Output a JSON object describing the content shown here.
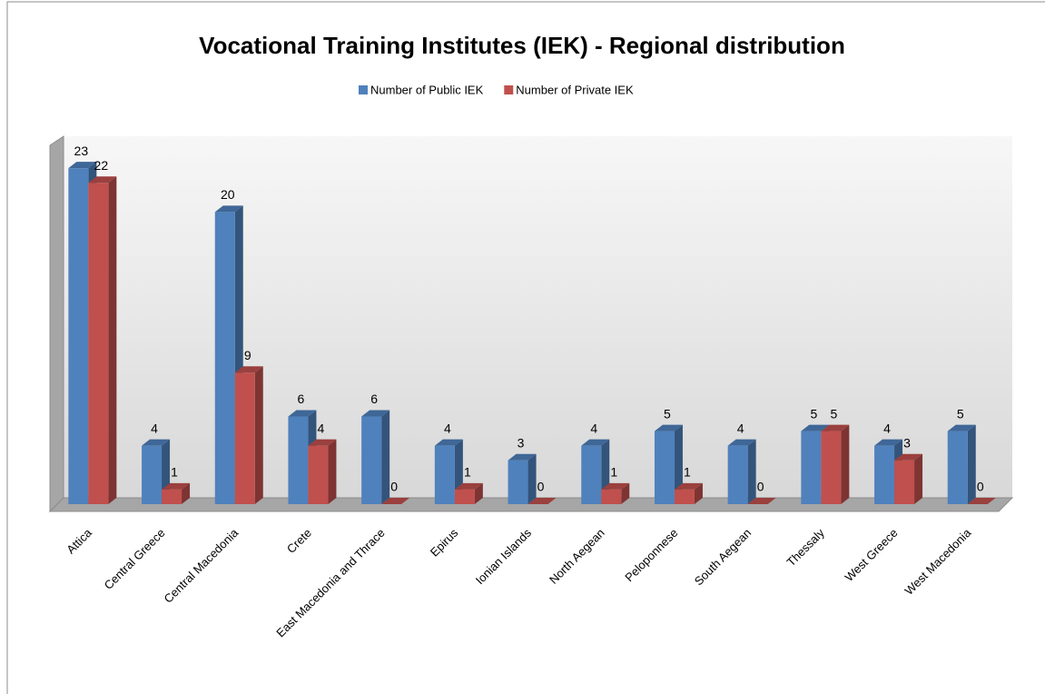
{
  "chart_data": {
    "type": "bar3d",
    "title": "Vocational Training Institutes (IEK) - Regional distribution",
    "categories": [
      "Attica",
      "Central Greece",
      "Central Macedonia",
      "Crete",
      "East Macedonia and Thrace",
      "Epirus",
      "Ionian Islands",
      "North Aegean",
      "Peloponnese",
      "South Aegean",
      "Thessaly",
      "West Greece",
      "West Macedonia"
    ],
    "series": [
      {
        "name": "Number of Public IEK",
        "color": "#4f81bd",
        "values": [
          23,
          4,
          20,
          6,
          6,
          4,
          3,
          4,
          5,
          4,
          5,
          4,
          5
        ]
      },
      {
        "name": "Number of Private IEK",
        "color": "#c0504d",
        "values": [
          22,
          1,
          9,
          4,
          0,
          1,
          0,
          1,
          1,
          0,
          5,
          3,
          0
        ]
      }
    ],
    "ylim": [
      0,
      25
    ],
    "legend": "top"
  }
}
